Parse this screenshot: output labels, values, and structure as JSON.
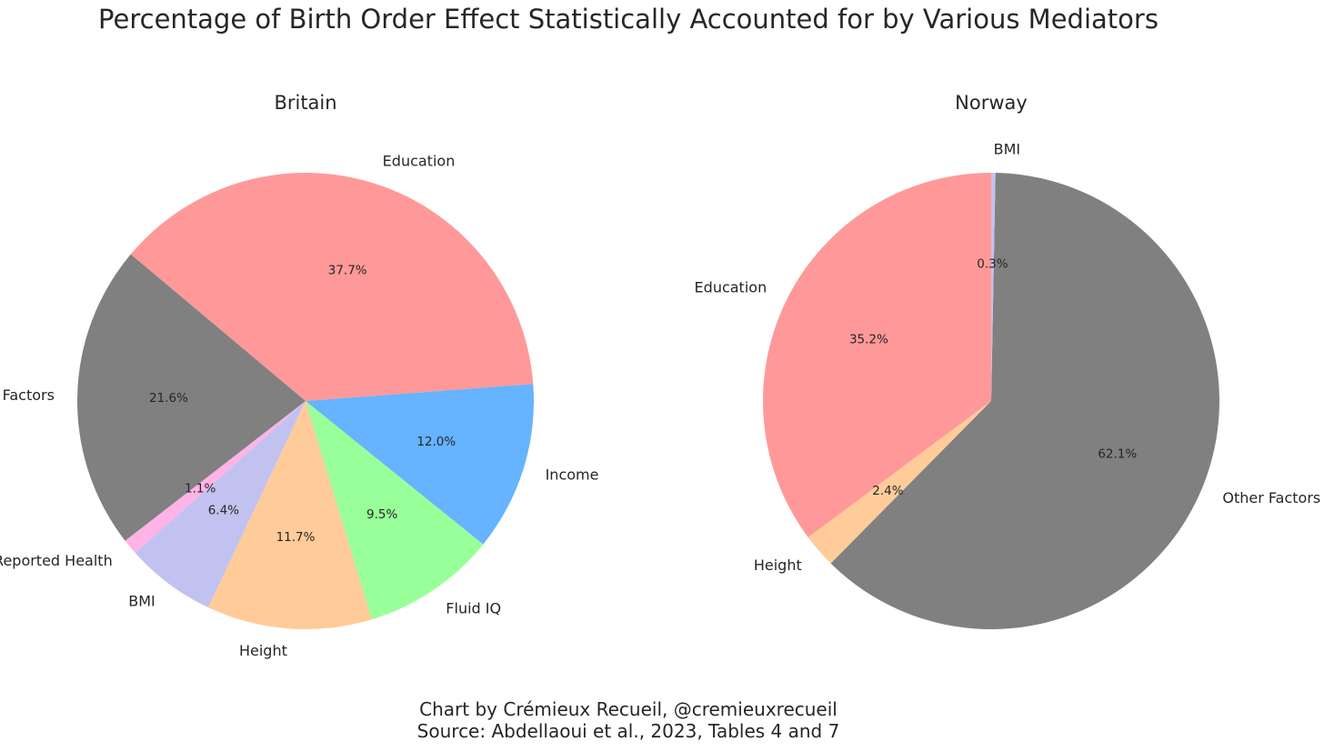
{
  "title": "Percentage of Birth Order Effect Statistically Accounted for by Various Mediators",
  "footer": {
    "line1": "Chart by Crémieux Recueil, @cremieuxrecueil",
    "line2": "Source: Abdellaoui et al., 2023, Tables 4 and 7"
  },
  "chart_data": [
    {
      "type": "pie",
      "title": "Britain",
      "slices": [
        {
          "label": "Education",
          "value": 37.7,
          "pct_label": "37.7%",
          "color": "#ff9999"
        },
        {
          "label": "Income",
          "value": 12.0,
          "pct_label": "12.0%",
          "color": "#66b3ff"
        },
        {
          "label": "Fluid IQ",
          "value": 9.5,
          "pct_label": "9.5%",
          "color": "#99ff99"
        },
        {
          "label": "Height",
          "value": 11.7,
          "pct_label": "11.7%",
          "color": "#ffcc99"
        },
        {
          "label": "BMI",
          "value": 6.4,
          "pct_label": "6.4%",
          "color": "#c2c2f0"
        },
        {
          "label": "Self-Reported Health",
          "value": 1.1,
          "pct_label": "1.1%",
          "color": "#ffb3e6"
        },
        {
          "label": "Other Factors",
          "value": 21.6,
          "pct_label": "21.6%",
          "color": "#808080"
        }
      ]
    },
    {
      "type": "pie",
      "title": "Norway",
      "slices": [
        {
          "label": "Education",
          "value": 35.2,
          "pct_label": "35.2%",
          "color": "#ff9999"
        },
        {
          "label": "Height",
          "value": 2.4,
          "pct_label": "2.4%",
          "color": "#ffcc99"
        },
        {
          "label": "Other Factors",
          "value": 62.1,
          "pct_label": "62.1%",
          "color": "#808080"
        },
        {
          "label": "BMI",
          "value": 0.3,
          "pct_label": "0.3%",
          "color": "#c2c2f0"
        }
      ]
    }
  ]
}
